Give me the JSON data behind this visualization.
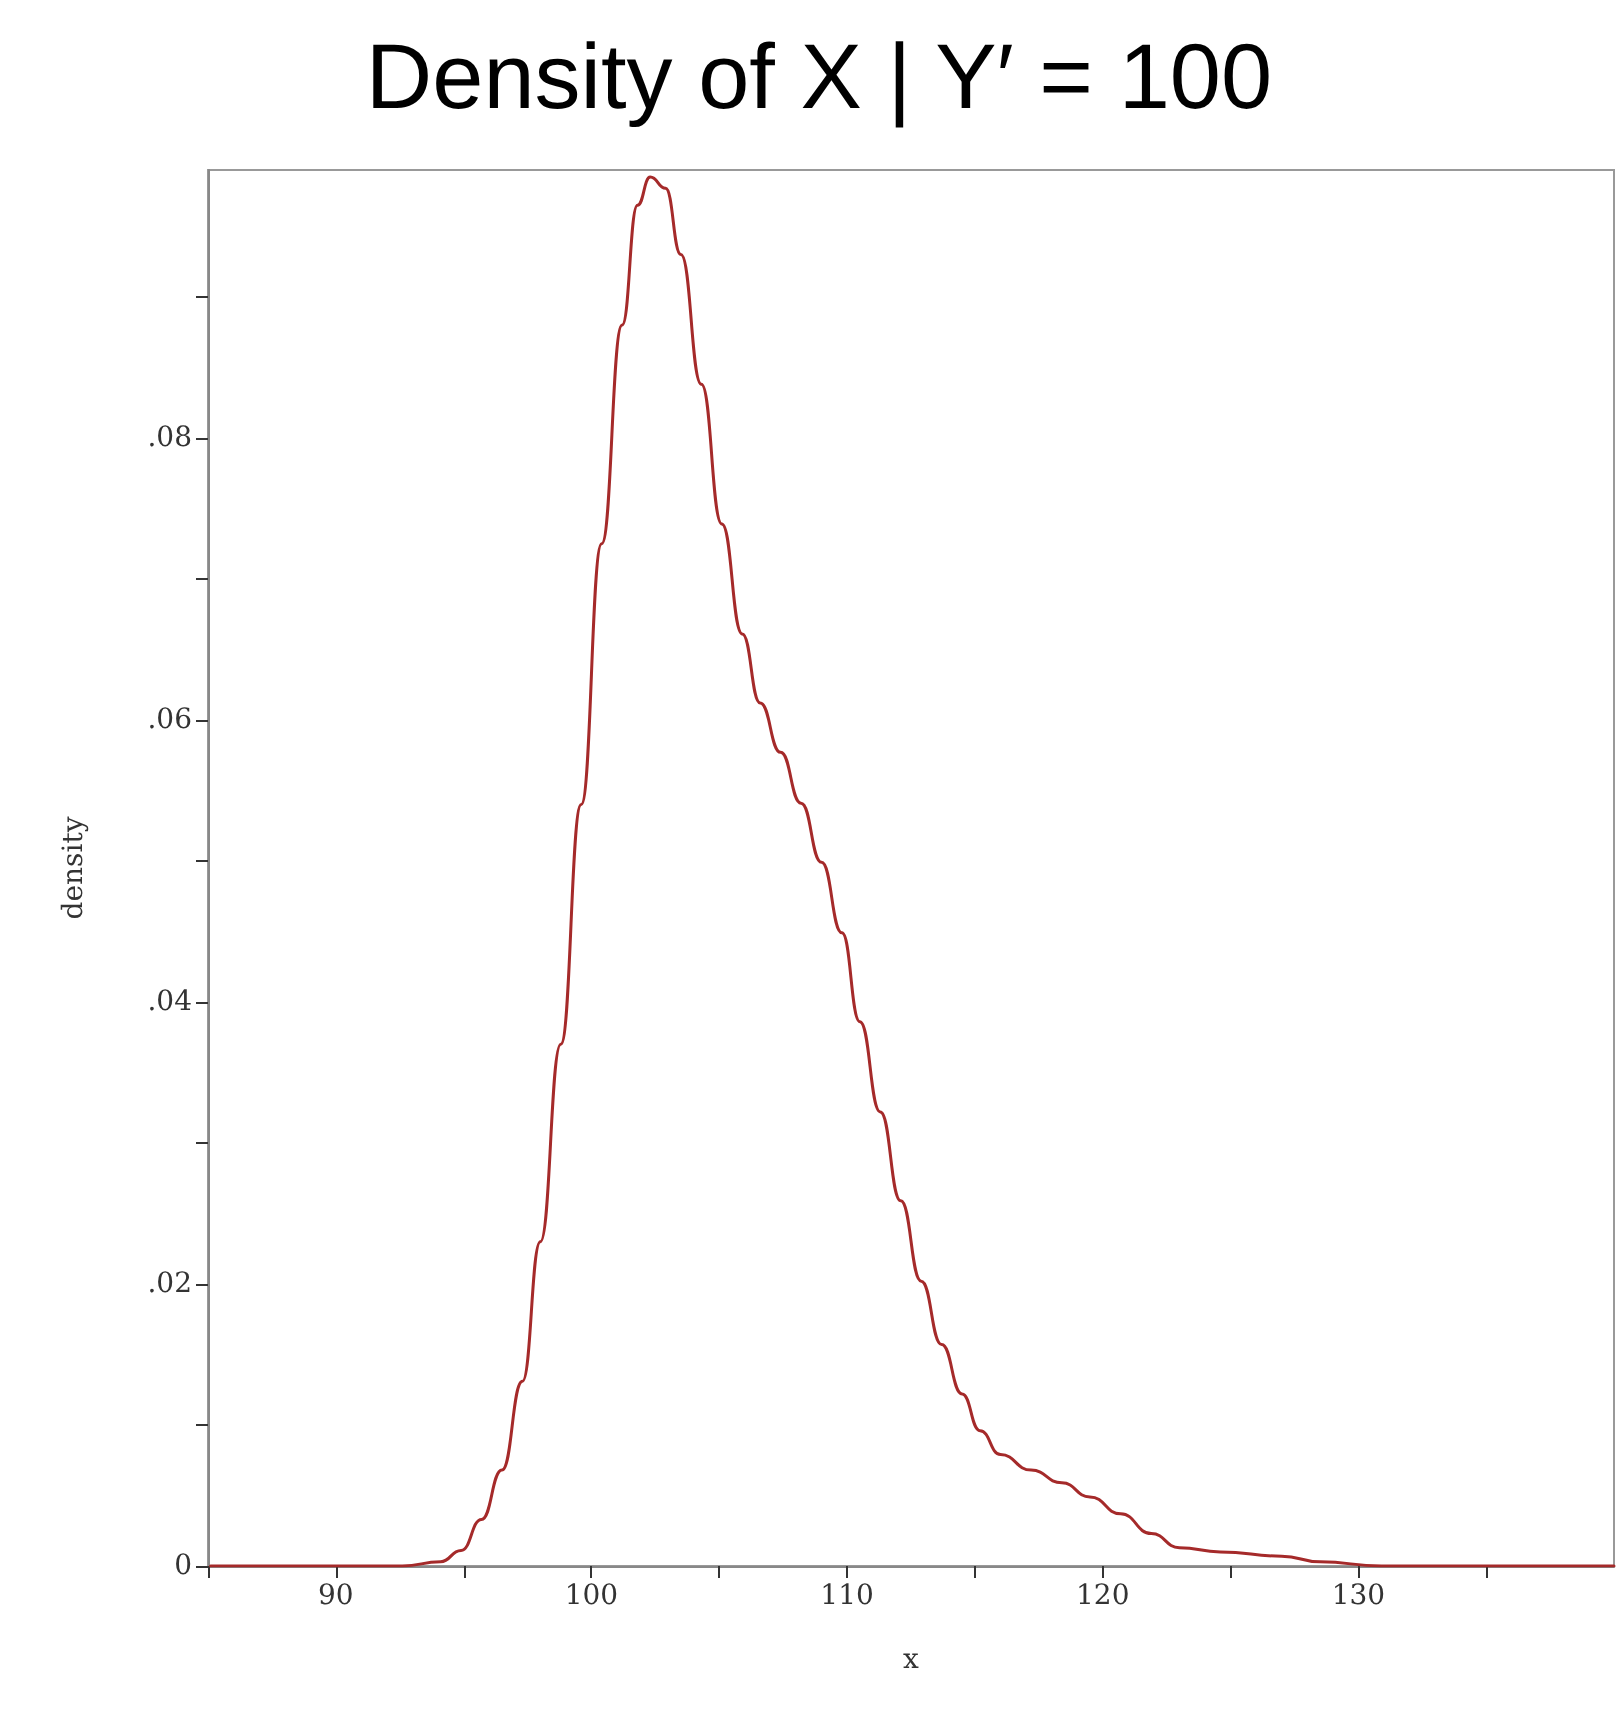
{
  "chart_data": {
    "type": "line",
    "title": "Density of X | Y′ = 100",
    "xlabel": "x",
    "ylabel": "density",
    "x": [
      85.1,
      92.6,
      94.1,
      94.9,
      95.7,
      96.5,
      97.3,
      98.0,
      98.8,
      99.6,
      100.4,
      101.2,
      101.8,
      102.3,
      102.9,
      103.5,
      104.3,
      105.1,
      105.9,
      106.6,
      107.4,
      108.2,
      109.0,
      109.8,
      110.5,
      111.3,
      112.1,
      112.9,
      113.7,
      114.5,
      115.2,
      116.0,
      117.2,
      118.4,
      119.5,
      120.7,
      121.9,
      123.0,
      124.6,
      127.0,
      128.5,
      130.9,
      140
    ],
    "series": [
      {
        "color": "#a52a2a",
        "values": [
          0,
          0,
          0.0003,
          0.0011,
          0.0033,
          0.0068,
          0.0131,
          0.023,
          0.037,
          0.054,
          0.0725,
          0.088,
          0.0965,
          0.0985,
          0.0977,
          0.093,
          0.0838,
          0.0739,
          0.0661,
          0.0612,
          0.0577,
          0.0541,
          0.0499,
          0.0449,
          0.0386,
          0.0322,
          0.0259,
          0.0202,
          0.0157,
          0.0122,
          0.0096,
          0.0079,
          0.0068,
          0.0059,
          0.0049,
          0.0037,
          0.0023,
          0.0013,
          0.001,
          0.0007,
          0.0003,
          0,
          0
        ]
      }
    ],
    "xlim": [
      85,
      140
    ],
    "xticks": [
      {
        "value": 85,
        "label": null
      },
      90,
      {
        "value": 95,
        "label": null
      },
      100,
      {
        "value": 105,
        "label": null
      },
      110,
      {
        "value": 115,
        "label": null
      },
      120,
      {
        "value": 125,
        "label": null
      },
      130,
      {
        "value": 135,
        "label": null
      }
    ],
    "ylim": [
      0,
      0.099
    ],
    "yticks": [
      0,
      {
        "value": 0.01,
        "label": null
      },
      {
        "value": 0.02,
        "label": ".02"
      },
      {
        "value": 0.03,
        "label": null
      },
      {
        "value": 0.04,
        "label": ".04"
      },
      {
        "value": 0.05,
        "label": null
      },
      {
        "value": 0.06,
        "label": ".06"
      },
      {
        "value": 0.07,
        "label": null
      },
      {
        "value": 0.08,
        "label": ".08"
      },
      {
        "value": 0.09,
        "label": null
      }
    ],
    "grid": false,
    "marker": "none",
    "line_style": "solid"
  }
}
